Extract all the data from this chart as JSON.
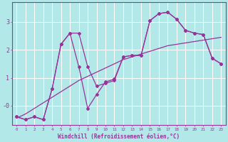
{
  "xlabel": "Windchill (Refroidissement éolien,°C)",
  "bg_color": "#b2e8e8",
  "grid_color": "#ffffff",
  "line_color": "#993399",
  "x_hours": [
    0,
    1,
    2,
    3,
    4,
    5,
    6,
    7,
    8,
    9,
    10,
    11,
    12,
    13,
    14,
    15,
    16,
    17,
    18,
    19,
    20,
    21,
    22,
    23
  ],
  "series1": [
    -0.4,
    -0.5,
    -0.4,
    -0.5,
    0.6,
    2.2,
    2.6,
    2.6,
    1.4,
    0.7,
    0.8,
    0.9,
    1.75,
    1.8,
    1.8,
    3.05,
    3.3,
    3.35,
    3.1,
    2.7,
    2.6,
    2.55,
    1.7,
    1.5
  ],
  "series2": [
    -0.4,
    -0.5,
    -0.4,
    -0.5,
    0.6,
    2.2,
    2.6,
    1.4,
    -0.1,
    0.4,
    0.85,
    0.95,
    1.75,
    1.8,
    1.8,
    3.05,
    3.3,
    3.35,
    3.1,
    2.7,
    2.6,
    2.55,
    1.7,
    1.5
  ],
  "trend": [
    -0.45,
    -0.3,
    -0.1,
    0.1,
    0.3,
    0.5,
    0.7,
    0.9,
    1.05,
    1.2,
    1.35,
    1.5,
    1.65,
    1.75,
    1.85,
    1.95,
    2.05,
    2.15,
    2.2,
    2.25,
    2.3,
    2.35,
    2.4,
    2.45
  ],
  "ylim": [
    -0.7,
    3.7
  ],
  "xlim": [
    -0.5,
    23.5
  ],
  "yticks": [
    0,
    1,
    2,
    3
  ],
  "ytick_labels": [
    "-0",
    "1",
    "2",
    "3"
  ]
}
